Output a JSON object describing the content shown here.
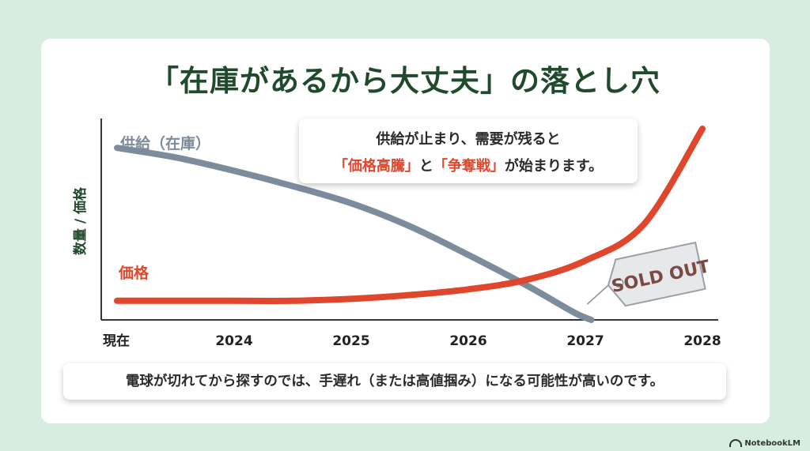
{
  "title": "「在庫があるから大丈夫」の落とし穴",
  "callout": {
    "line1": "供給が止まり、需要が残ると",
    "line2_a": "「価格高騰」",
    "line2_b": "と",
    "line2_c": "「争奪戦」",
    "line2_d": "が始まります。"
  },
  "tag_text": "SOLD OUT",
  "note": "電球が切れてから探すのでは、手遅れ（または高値掴み）になる可能性が高いのです。",
  "watermark": "NotebookLM",
  "colors": {
    "supply": "#7d8c9c",
    "price": "#e0462c",
    "title": "#1f4a2c",
    "background": "#d6ede0"
  },
  "chart_data": {
    "type": "line",
    "ylabel": "数量 / 価格",
    "x_ticks": [
      "現在",
      "2024",
      "2025",
      "2026",
      "2027",
      "2028"
    ],
    "series": [
      {
        "name": "供給（在庫）",
        "color": "#7d8c9c",
        "x": [
          0,
          0.5,
          1,
          1.5,
          2,
          2.5,
          3,
          3.5,
          3.9,
          4.05
        ],
        "y": [
          0.9,
          0.85,
          0.78,
          0.7,
          0.61,
          0.49,
          0.34,
          0.18,
          0.04,
          0.0
        ]
      },
      {
        "name": "価格",
        "color": "#e0462c",
        "x": [
          0,
          0.5,
          1,
          1.5,
          2,
          2.5,
          3,
          3.5,
          4,
          4.5,
          5
        ],
        "y": [
          0.1,
          0.1,
          0.1,
          0.1,
          0.11,
          0.13,
          0.16,
          0.21,
          0.31,
          0.5,
          1.0
        ]
      }
    ],
    "ylim": [
      0,
      1
    ],
    "xlim": [
      0,
      5
    ],
    "grid": false
  }
}
